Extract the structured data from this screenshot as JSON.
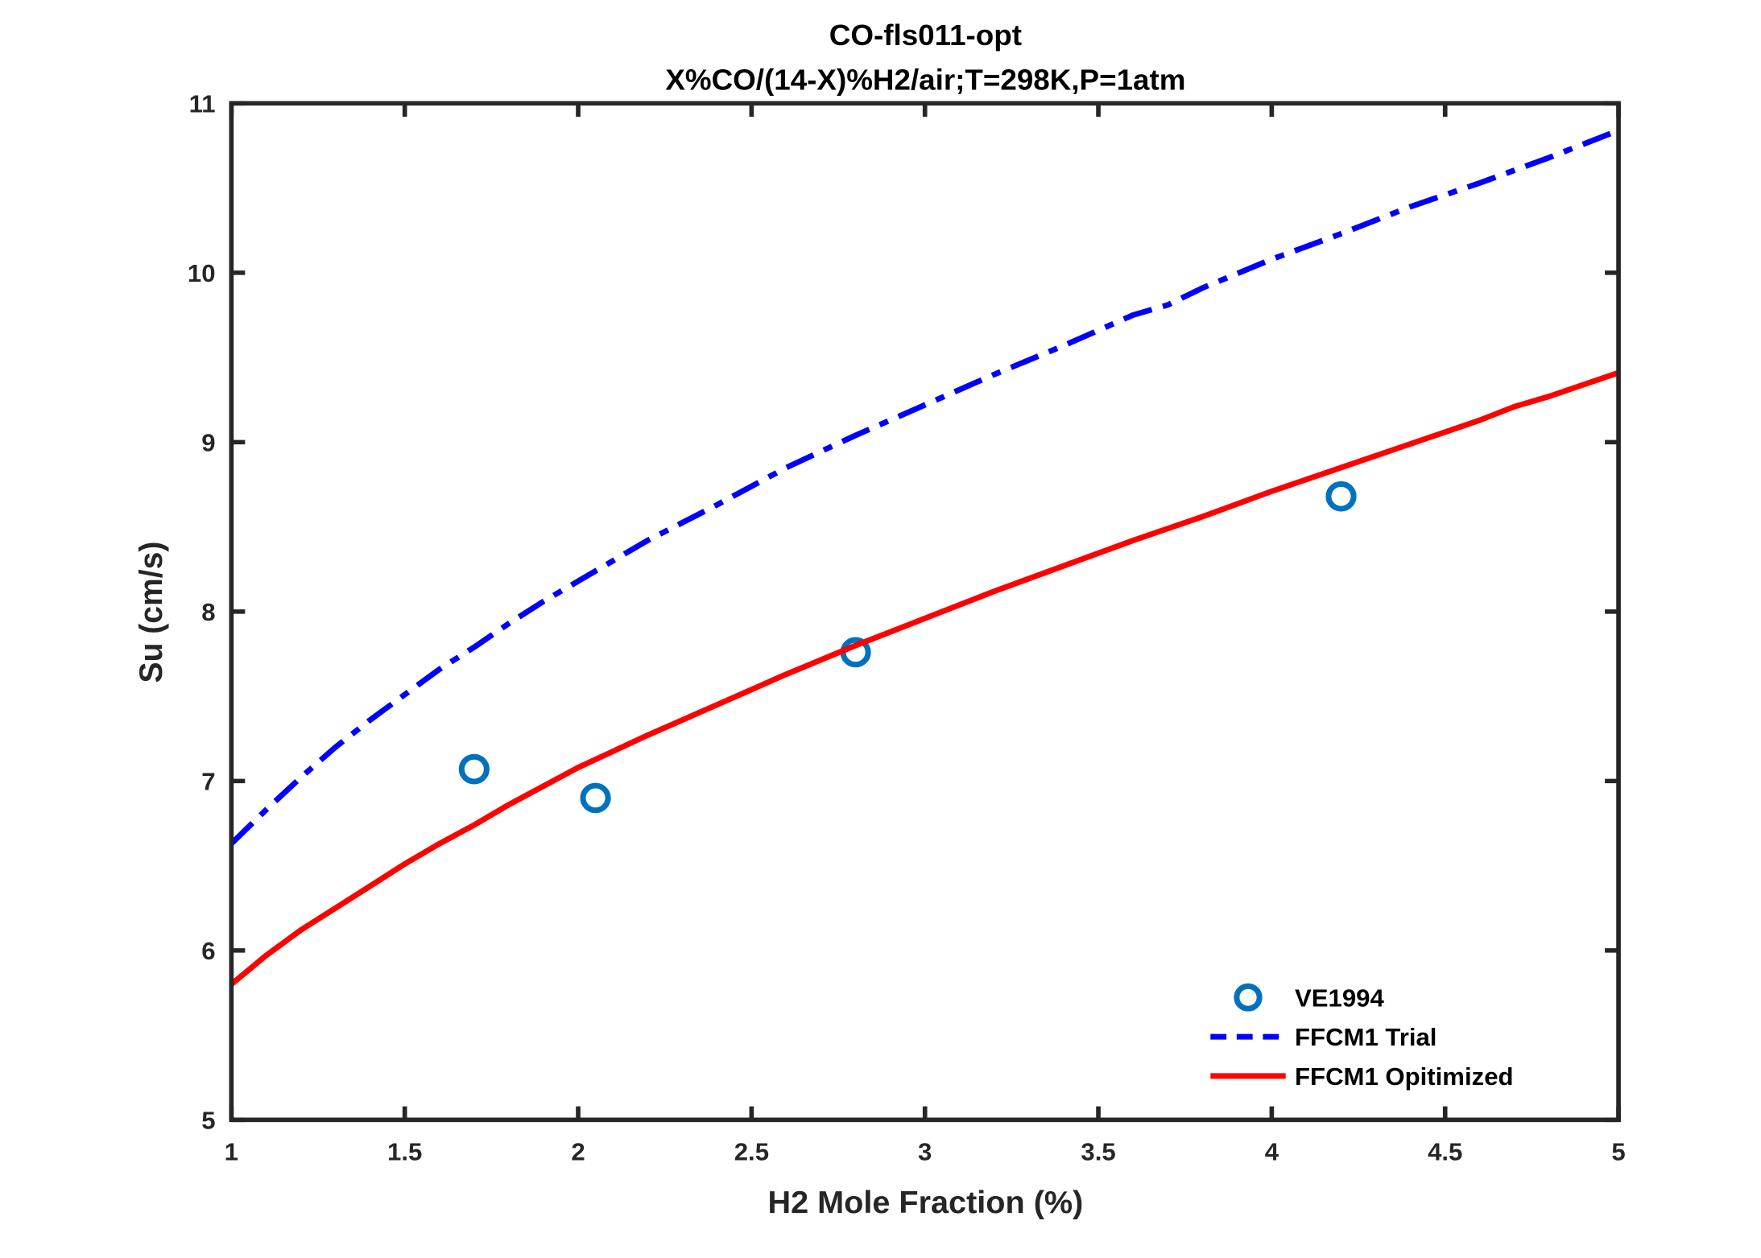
{
  "chart_data": {
    "type": "line",
    "title": "CO-fls011-opt",
    "subtitle": "X%CO/(14-X)%H2/air;T=298K,P=1atm",
    "xlabel": "H2 Mole Fraction (%)",
    "ylabel": "Su (cm/s)",
    "xlim": [
      1,
      5
    ],
    "ylim": [
      5,
      11
    ],
    "xticks": [
      "1",
      "1.5",
      "2",
      "2.5",
      "3",
      "3.5",
      "4",
      "4.5",
      "5"
    ],
    "yticks": [
      "5",
      "6",
      "7",
      "8",
      "9",
      "10",
      "11"
    ],
    "grid": false,
    "legend_position": "bottom-right",
    "series": [
      {
        "name": "VE1994",
        "style": "marker-circle",
        "color": "#0072BD",
        "x": [
          1.7,
          2.05,
          2.8,
          4.2
        ],
        "y": [
          7.07,
          6.9,
          7.76,
          8.68
        ]
      },
      {
        "name": "FFCM1 Trial",
        "style": "dash-dot",
        "color": "#0000FF",
        "x": [
          1,
          1.1,
          1.2,
          1.3,
          1.4,
          1.5,
          1.6,
          1.7,
          1.8,
          1.9,
          2.0,
          2.2,
          2.4,
          2.6,
          2.8,
          3.0,
          3.2,
          3.4,
          3.6,
          3.7,
          3.8,
          4.0,
          4.2,
          4.4,
          4.6,
          4.8,
          5.0
        ],
        "y": [
          6.63,
          6.83,
          7.02,
          7.2,
          7.36,
          7.51,
          7.66,
          7.79,
          7.93,
          8.06,
          8.18,
          8.42,
          8.63,
          8.85,
          9.04,
          9.22,
          9.4,
          9.57,
          9.75,
          9.81,
          9.91,
          10.08,
          10.23,
          10.39,
          10.53,
          10.68,
          10.84
        ]
      },
      {
        "name": "FFCM1 Opitimized",
        "style": "solid",
        "color": "#FF0000",
        "x": [
          1,
          1.1,
          1.2,
          1.3,
          1.4,
          1.5,
          1.6,
          1.7,
          1.8,
          1.9,
          2.0,
          2.2,
          2.4,
          2.6,
          2.8,
          2.9,
          3.0,
          3.2,
          3.4,
          3.6,
          3.8,
          4.0,
          4.2,
          4.4,
          4.6,
          4.7,
          4.8,
          5.0
        ],
        "y": [
          5.8,
          5.97,
          6.12,
          6.25,
          6.38,
          6.51,
          6.63,
          6.74,
          6.86,
          6.97,
          7.08,
          7.27,
          7.45,
          7.63,
          7.8,
          7.88,
          7.96,
          8.12,
          8.27,
          8.42,
          8.56,
          8.71,
          8.85,
          8.99,
          9.13,
          9.21,
          9.27,
          9.41
        ]
      }
    ]
  }
}
